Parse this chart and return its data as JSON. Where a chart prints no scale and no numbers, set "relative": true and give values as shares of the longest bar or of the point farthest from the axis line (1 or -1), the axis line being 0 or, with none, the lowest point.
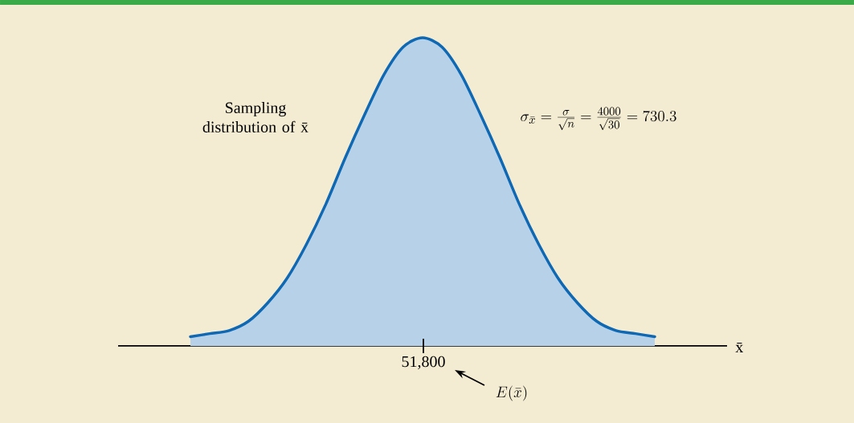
{
  "chart_data": {
    "type": "area",
    "relative": true,
    "xlabel": "x̄",
    "categories": [
      null,
      null,
      null,
      null,
      null,
      null,
      null,
      null,
      null,
      null,
      null,
      null,
      null,
      null,
      null,
      null,
      null,
      null,
      null,
      null,
      null,
      null,
      null,
      null,
      null
    ],
    "values": [
      0.03,
      0.04,
      0.05,
      0.08,
      0.14,
      0.22,
      0.33,
      0.46,
      0.61,
      0.75,
      0.88,
      0.97,
      1,
      0.97,
      0.88,
      0.75,
      0.61,
      0.46,
      0.33,
      0.22,
      0.14,
      0.08,
      0.05,
      0.04,
      0.03
    ],
    "color": "#0e68b4",
    "annotations": [
      "Sampling distribution of x̄",
      "\\sigma_{\\bar{x}} = \\frac{\\sigma}{\\sqrt{n}} = \\frac{4000}{\\sqrt{30}} = 730.3",
      "E(\\bar{x})",
      "51,800"
    ]
  }
}
